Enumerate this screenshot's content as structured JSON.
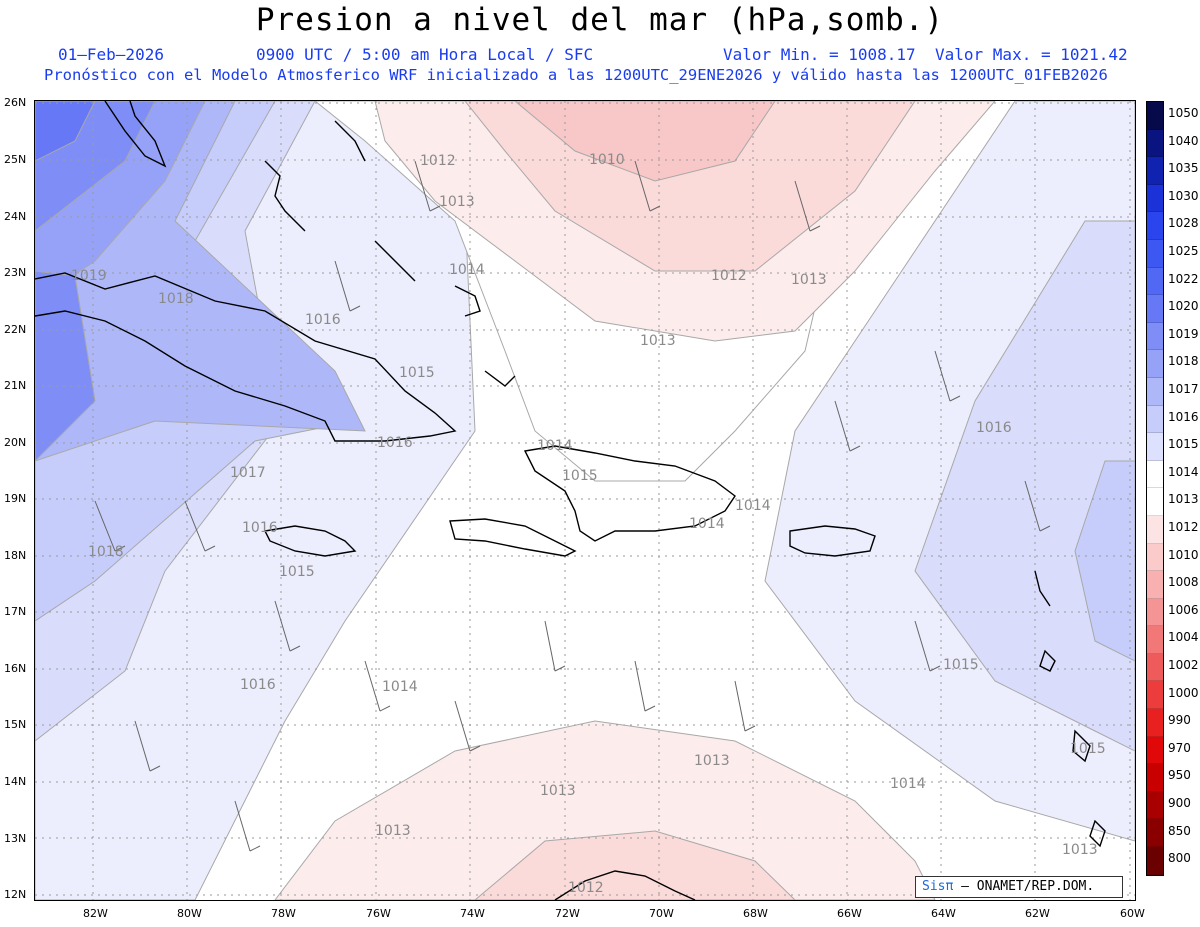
{
  "header": {
    "title": "Presion a nivel del mar (hPa,somb.)",
    "date": "01–Feb–2026",
    "time": "0900 UTC / 5:00 am Hora Local / SFC",
    "vmin": "Valor Min. = 1008.17",
    "vmax": "Valor Max. = 1021.42",
    "forecast": "Pronóstico con el Modelo Atmosferico WRF inicializado a las 1200UTC_29ENE2026 y válido hasta las 1200UTC_01FEB2026"
  },
  "axes": {
    "lat_labels": [
      "26N",
      "25N",
      "24N",
      "23N",
      "22N",
      "21N",
      "20N",
      "19N",
      "18N",
      "17N",
      "16N",
      "15N",
      "14N",
      "13N",
      "12N"
    ],
    "lon_labels": [
      "82W",
      "80W",
      "78W",
      "76W",
      "74W",
      "72W",
      "70W",
      "68W",
      "66W",
      "64W",
      "62W",
      "60W"
    ]
  },
  "colorbar": {
    "labels": [
      "1050",
      "1040",
      "1035",
      "1030",
      "1028",
      "1025",
      "1022",
      "1020",
      "1019",
      "1018",
      "1017",
      "1016",
      "1015",
      "1014",
      "1013",
      "1012",
      "1010",
      "1008",
      "1006",
      "1004",
      "1002",
      "1000",
      "990",
      "970",
      "950",
      "900",
      "850",
      "800"
    ],
    "colors": [
      "#060a4a",
      "#0a1480",
      "#0f22b0",
      "#1a32d8",
      "#2a44ee",
      "#3c57f2",
      "#5068f4",
      "#6678f5",
      "#7e8ef6",
      "#96a2f7",
      "#aeb8f9",
      "#c6cdfb",
      "#dde1fd",
      "#ffffff",
      "#ffffff",
      "#fde4e4",
      "#fbcaca",
      "#f8b0b0",
      "#f59494",
      "#f27878",
      "#ef5a5a",
      "#ec3c3c",
      "#e82020",
      "#e00808",
      "#c80000",
      "#a80000",
      "#8a0000",
      "#6a0000"
    ]
  },
  "isobars": [
    "1012",
    "1010",
    "1013",
    "1014",
    "1012",
    "1013",
    "1013",
    "1019",
    "1018",
    "1016",
    "1015",
    "1016",
    "1014",
    "1015",
    "1017",
    "1016",
    "1014",
    "1014",
    "1016",
    "1018",
    "1015",
    "1016",
    "1015",
    "1014",
    "1015",
    "1013",
    "1013",
    "1013",
    "1014",
    "1013",
    "1012"
  ],
  "credit": {
    "logo": "Sisπ",
    "text": "– ONAMET/REP.DOM."
  }
}
